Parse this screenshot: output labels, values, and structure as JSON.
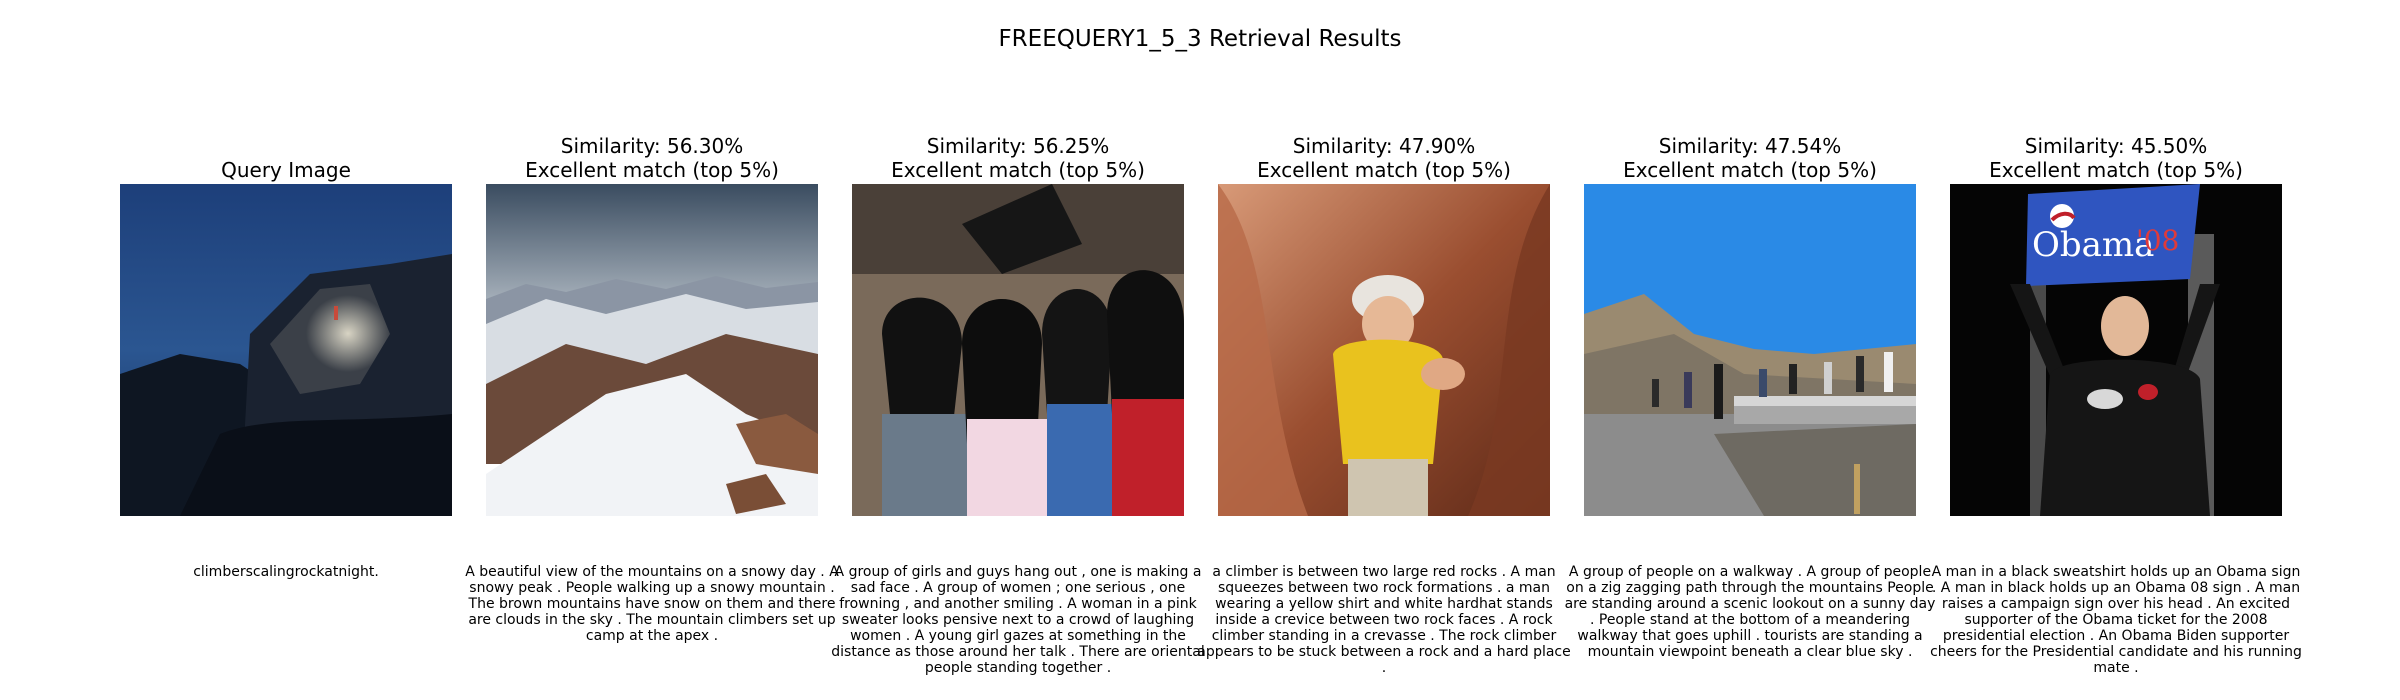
{
  "title": "FREEQUERY1_5_3 Retrieval Results",
  "query": {
    "heading": "Query Image",
    "caption": "climberscalingrockatnight."
  },
  "results": [
    {
      "similarity": "Similarity: 56.30%",
      "match": "Excellent match (top 5%)",
      "caption": "A beautiful view of the mountains on a snowy day . A snowy peak . People walking up a snowy mountain . The brown mountains have snow on them and there are clouds in the sky . The mountain climbers set up camp at the apex ."
    },
    {
      "similarity": "Similarity: 56.25%",
      "match": "Excellent match (top 5%)",
      "caption": "A group of girls and guys hang out , one is making a sad face . A group of women ; one serious , one frowning , and another smiling . A woman in a pink sweater looks pensive next to a crowd of laughing women . A young girl gazes at something in the distance as those around her talk . There are oriental people standing together ."
    },
    {
      "similarity": "Similarity: 47.90%",
      "match": "Excellent match (top 5%)",
      "caption": "a climber is between two large red rocks . A man squeezes between two rock formations . a man wearing a yellow shirt and white hardhat stands inside a crevice between two rock faces . A rock climber standing in a crevasse . The rock climber appears to be stuck between a rock and a hard place ."
    },
    {
      "similarity": "Similarity: 47.54%",
      "match": "Excellent match (top 5%)",
      "caption": "A group of people on a walkway . A group of people on a zig zagging path through the mountains People are standing around a scenic lookout on a sunny day . People stand at the bottom of a meandering walkway that goes uphill . tourists are standing a mountain viewpoint beneath a clear blue sky ."
    },
    {
      "similarity": "Similarity: 45.50%",
      "match": "Excellent match (top 5%)",
      "caption": "A man in a black sweatshirt holds up an Obama sign . A man in black holds up an Obama 08 sign . A man raises a campaign sign over his head . An excited supporter of the Obama ticket for the 2008 presidential election . An Obama Biden supporter cheers for the Presidential candidate and his running mate ."
    }
  ],
  "sign_text": {
    "name": "Obama",
    "year": "'08"
  }
}
